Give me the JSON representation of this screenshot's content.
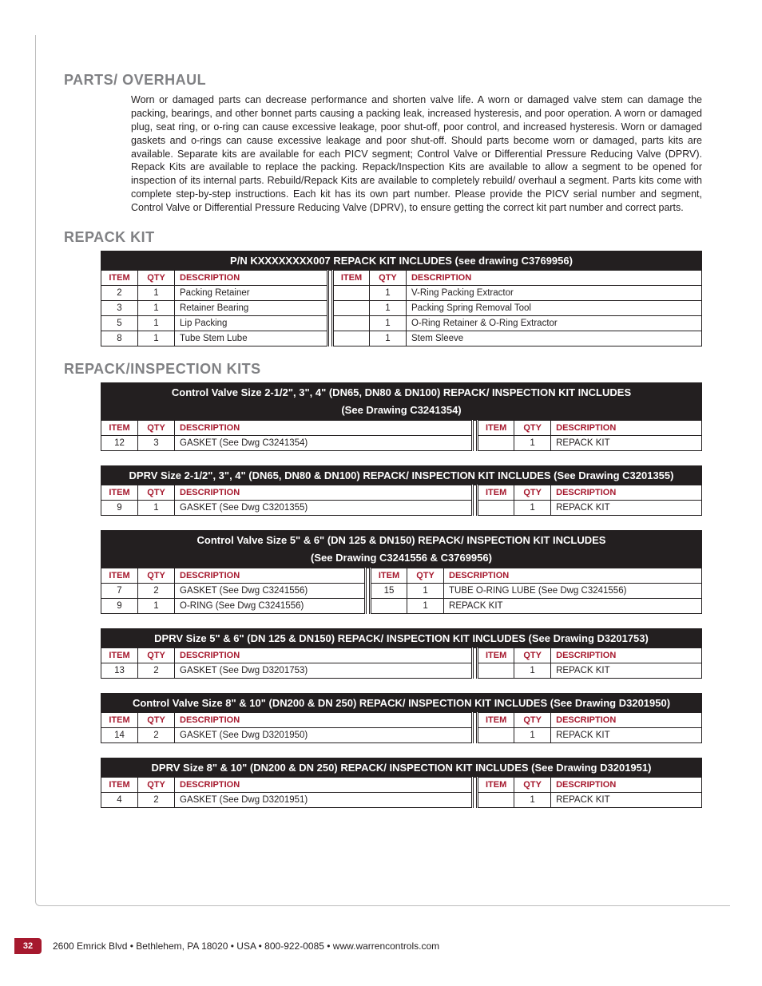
{
  "sections": {
    "parts_overhaul": {
      "heading": "PARTS/ OVERHAUL",
      "body": "Worn or damaged parts can decrease performance and shorten valve life. A worn or damaged valve stem can damage the packing, bearings, and other bonnet parts causing a packing leak, increased hysteresis, and poor operation. A worn or damaged plug, seat ring, or o-ring can cause excessive leakage, poor shut-off, poor control, and increased hysteresis. Worn or damaged gaskets and o-rings can cause excessive leakage and poor shut-off. Should parts become worn or damaged, parts kits are available. Separate kits are available for each PICV segment; Control Valve or Differential Pressure Reducing Valve (DPRV). Repack Kits are available to replace the packing. Repack/Inspection Kits are available to allow a segment to be opened for inspection of its internal parts. Rebuild/Repack Kits are available to completely rebuild/ overhaul a segment. Parts kits come with complete step-by-step instructions. Each kit has its own part number. Please provide the PICV serial number and segment,  Control Valve or Differential Pressure Reducing Valve (DPRV), to ensure getting the correct kit part number and correct parts."
    },
    "repack_kit": {
      "heading": "REPACK KIT"
    },
    "repack_inspection": {
      "heading": "REPACK/INSPECTION KITS"
    }
  },
  "col_labels": {
    "item": "Item",
    "qty": "Qty",
    "desc": "Description"
  },
  "tables": {
    "repack": {
      "title": "P/N KXXXXXXXX007 REPACK KIT INCLUDES (see drawing C3769956)",
      "left": [
        {
          "item": "2",
          "qty": "1",
          "desc": "Packing Retainer"
        },
        {
          "item": "3",
          "qty": "1",
          "desc": "Retainer Bearing"
        },
        {
          "item": "5",
          "qty": "1",
          "desc": "Lip Packing"
        },
        {
          "item": "8",
          "qty": "1",
          "desc": "Tube Stem Lube"
        }
      ],
      "right": [
        {
          "item": "",
          "qty": "1",
          "desc": "V-Ring Packing Extractor"
        },
        {
          "item": "",
          "qty": "1",
          "desc": "Packing Spring Removal Tool"
        },
        {
          "item": "",
          "qty": "1",
          "desc": "O-Ring Retainer & O-Ring Extractor"
        },
        {
          "item": "",
          "qty": "1",
          "desc": "Stem Sleeve"
        }
      ]
    },
    "insp1": {
      "title": "Control Valve Size 2-1/2\", 3\", 4\" (DN65, DN80 & DN100) REPACK/ INSPECTION KIT INCLUDES",
      "title2": "(See Drawing C3241354)",
      "left": [
        {
          "item": "12",
          "qty": "3",
          "desc": "GASKET (See Dwg C3241354)"
        }
      ],
      "right": [
        {
          "item": "",
          "qty": "1",
          "desc": "REPACK KIT"
        }
      ]
    },
    "insp2": {
      "title": "DPRV Size 2-1/2\", 3\", 4\" (DN65, DN80 & DN100) REPACK/ INSPECTION KIT INCLUDES (See Drawing C3201355)",
      "left": [
        {
          "item": "9",
          "qty": "1",
          "desc": "GASKET (See Dwg C3201355)"
        }
      ],
      "right": [
        {
          "item": "",
          "qty": "1",
          "desc": "REPACK KIT"
        }
      ]
    },
    "insp3": {
      "title": "Control Valve Size 5\" & 6\" (DN 125 & DN150) REPACK/ INSPECTION KIT INCLUDES",
      "title2": "(See Drawing C3241556 & C3769956)",
      "left": [
        {
          "item": "7",
          "qty": "2",
          "desc": "GASKET (See Dwg C3241556)"
        },
        {
          "item": "9",
          "qty": "1",
          "desc": "O-RING (See Dwg C3241556)"
        }
      ],
      "right": [
        {
          "item": "15",
          "qty": "1",
          "desc": "TUBE O-RING LUBE (See Dwg C3241556)"
        },
        {
          "item": "",
          "qty": "1",
          "desc": "REPACK KIT"
        }
      ]
    },
    "insp4": {
      "title": "DPRV Size 5\" & 6\" (DN 125 & DN150) REPACK/ INSPECTION KIT INCLUDES (See Drawing D3201753)",
      "left": [
        {
          "item": "13",
          "qty": "2",
          "desc": "GASKET (See Dwg D3201753)"
        }
      ],
      "right": [
        {
          "item": "",
          "qty": "1",
          "desc": "REPACK KIT"
        }
      ]
    },
    "insp5": {
      "title": "Control Valve Size 8\" & 10\" (DN200 & DN 250)  REPACK/ INSPECTION KIT INCLUDES (See Drawing D3201950)",
      "left": [
        {
          "item": "14",
          "qty": "2",
          "desc": "GASKET (See Dwg D3201950)"
        }
      ],
      "right": [
        {
          "item": "",
          "qty": "1",
          "desc": "REPACK KIT"
        }
      ]
    },
    "insp6": {
      "title": "DPRV Size 8\" & 10\" (DN200 & DN 250) REPACK/ INSPECTION KIT INCLUDES (See Drawing D3201951)",
      "left": [
        {
          "item": "4",
          "qty": "2",
          "desc": "GASKET (See Dwg D3201951)"
        }
      ],
      "right": [
        {
          "item": "",
          "qty": "1",
          "desc": "REPACK KIT"
        }
      ]
    }
  },
  "footer": {
    "page": "32",
    "text": "2600 Emrick Blvd • Bethlehem, PA 18020 • USA • 800-922-0085 • www.warrencontrols.com"
  },
  "colors": {
    "heading_gray": "#808184",
    "rule_red": "#a6192e",
    "table_header_bg": "#231f20",
    "text": "#231f20"
  }
}
